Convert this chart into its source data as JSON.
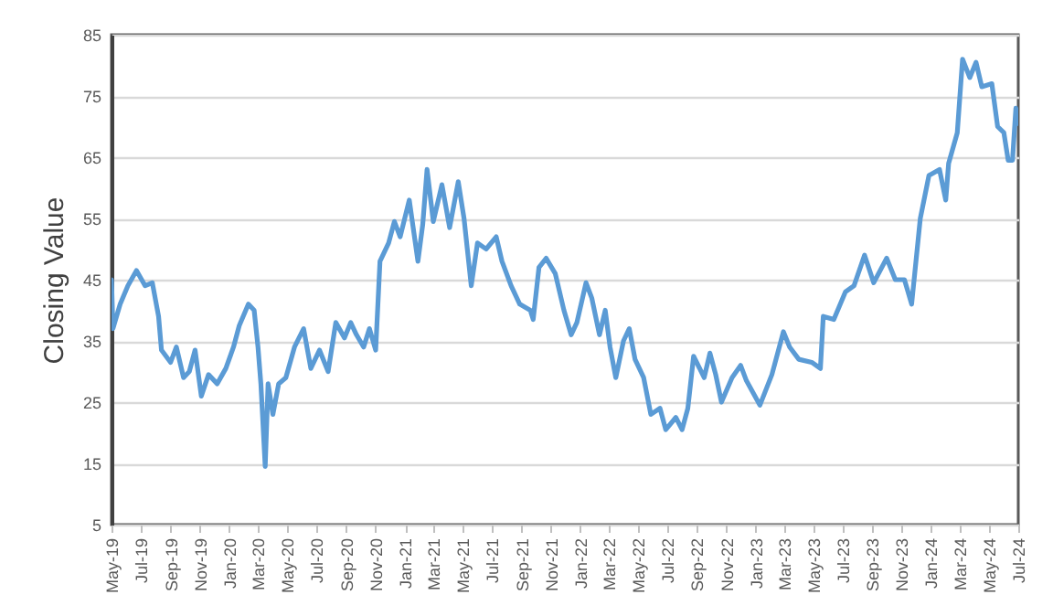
{
  "chart_data": {
    "type": "line",
    "ylabel": "Closing Value",
    "x": [
      "2019-05-01",
      "2019-05-04",
      "2019-05-19",
      "2019-06-04",
      "2019-06-22",
      "2019-07-10",
      "2019-07-25",
      "2019-08-07",
      "2019-08-13",
      "2019-09-01",
      "2019-09-13",
      "2019-09-28",
      "2019-10-10",
      "2019-10-22",
      "2019-11-04",
      "2019-11-19",
      "2019-12-07",
      "2019-12-25",
      "2020-01-10",
      "2020-01-22",
      "2020-02-10",
      "2020-02-22",
      "2020-03-01",
      "2020-03-07",
      "2020-03-16",
      "2020-03-22",
      "2020-04-01",
      "2020-04-13",
      "2020-04-28",
      "2020-05-16",
      "2020-06-04",
      "2020-06-19",
      "2020-07-07",
      "2020-07-25",
      "2020-08-10",
      "2020-08-28",
      "2020-09-10",
      "2020-09-22",
      "2020-10-07",
      "2020-10-19",
      "2020-11-01",
      "2020-11-10",
      "2020-11-28",
      "2020-12-10",
      "2020-12-22",
      "2021-01-10",
      "2021-01-28",
      "2021-02-07",
      "2021-02-16",
      "2021-03-01",
      "2021-03-19",
      "2021-04-04",
      "2021-04-22",
      "2021-05-04",
      "2021-05-19",
      "2021-06-01",
      "2021-06-19",
      "2021-07-10",
      "2021-07-22",
      "2021-08-10",
      "2021-08-28",
      "2021-09-19",
      "2021-09-25",
      "2021-10-07",
      "2021-10-22",
      "2021-11-10",
      "2021-11-28",
      "2021-12-13",
      "2021-12-25",
      "2022-01-13",
      "2022-01-25",
      "2022-02-10",
      "2022-02-22",
      "2022-03-04",
      "2022-03-16",
      "2022-04-01",
      "2022-04-13",
      "2022-04-25",
      "2022-05-13",
      "2022-05-28",
      "2022-06-16",
      "2022-06-28",
      "2022-07-19",
      "2022-08-01",
      "2022-08-13",
      "2022-08-25",
      "2022-09-16",
      "2022-09-28",
      "2022-10-10",
      "2022-10-22",
      "2022-11-13",
      "2022-12-01",
      "2022-12-13",
      "2023-01-10",
      "2023-02-04",
      "2023-02-28",
      "2023-03-13",
      "2023-04-01",
      "2023-04-28",
      "2023-05-16",
      "2023-05-22",
      "2023-06-13",
      "2023-07-07",
      "2023-07-25",
      "2023-08-16",
      "2023-09-04",
      "2023-10-01",
      "2023-10-19",
      "2023-11-07",
      "2023-11-22",
      "2023-12-10",
      "2023-12-28",
      "2024-01-19",
      "2024-02-01",
      "2024-02-07",
      "2024-02-25",
      "2024-03-07",
      "2024-03-22",
      "2024-04-04",
      "2024-04-16",
      "2024-05-07",
      "2024-05-19",
      "2024-06-01",
      "2024-06-10",
      "2024-06-19",
      "2024-06-26",
      "2024-07-01"
    ],
    "series": [
      {
        "color": "#5b9bd5",
        "values": [
          45,
          37,
          41,
          44,
          46.5,
          44,
          44.5,
          39,
          33.5,
          31.5,
          34,
          29,
          30,
          33.5,
          26,
          29.5,
          28,
          30.5,
          34,
          37.5,
          41,
          40,
          34,
          28,
          14.5,
          28,
          23,
          28,
          29,
          34,
          37,
          30.5,
          33.5,
          30,
          38,
          35.5,
          38,
          36,
          34,
          37,
          33.5,
          48,
          51,
          54.5,
          52,
          58,
          48,
          54,
          63,
          54.5,
          60.5,
          53.5,
          61,
          55,
          44,
          51,
          50,
          52,
          48,
          44,
          41,
          40,
          38.5,
          47,
          48.5,
          46,
          40,
          36,
          38,
          44.5,
          42,
          36,
          40,
          34,
          29,
          35,
          37,
          32,
          29,
          23,
          24,
          20.5,
          22.5,
          20.5,
          24,
          32.5,
          29,
          33,
          29.5,
          25,
          29,
          31,
          28.5,
          24.5,
          29.5,
          36.5,
          34,
          32,
          31.5,
          30.5,
          39,
          38.5,
          43,
          44,
          49,
          44.5,
          48.5,
          45,
          45,
          41,
          55,
          62,
          63,
          58,
          64,
          69,
          81,
          78,
          80.5,
          76.5,
          77,
          70,
          69,
          64.5,
          64.5,
          73,
          70.5
        ]
      }
    ],
    "xlim": [
      "2019-05",
      "2024-07"
    ],
    "xticks": [
      {
        "value": "2019-05",
        "label": "May-19"
      },
      {
        "value": "2019-07",
        "label": "Jul-19"
      },
      {
        "value": "2019-09",
        "label": "Sep-19"
      },
      {
        "value": "2019-11",
        "label": "Nov-19"
      },
      {
        "value": "2020-01",
        "label": "Jan-20"
      },
      {
        "value": "2020-03",
        "label": "Mar-20"
      },
      {
        "value": "2020-05",
        "label": "May-20"
      },
      {
        "value": "2020-07",
        "label": "Jul-20"
      },
      {
        "value": "2020-09",
        "label": "Sep-20"
      },
      {
        "value": "2020-11",
        "label": "Nov-20"
      },
      {
        "value": "2021-01",
        "label": "Jan-21"
      },
      {
        "value": "2021-03",
        "label": "Mar-21"
      },
      {
        "value": "2021-05",
        "label": "May-21"
      },
      {
        "value": "2021-07",
        "label": "Jul-21"
      },
      {
        "value": "2021-09",
        "label": "Sep-21"
      },
      {
        "value": "2021-11",
        "label": "Nov-21"
      },
      {
        "value": "2022-01",
        "label": "Jan-22"
      },
      {
        "value": "2022-03",
        "label": "Mar-22"
      },
      {
        "value": "2022-05",
        "label": "May-22"
      },
      {
        "value": "2022-07",
        "label": "Jul-22"
      },
      {
        "value": "2022-09",
        "label": "Sep-22"
      },
      {
        "value": "2022-11",
        "label": "Nov-22"
      },
      {
        "value": "2023-01",
        "label": "Jan-23"
      },
      {
        "value": "2023-03",
        "label": "Mar-23"
      },
      {
        "value": "2023-05",
        "label": "May-23"
      },
      {
        "value": "2023-07",
        "label": "Jul-23"
      },
      {
        "value": "2023-09",
        "label": "Sep-23"
      },
      {
        "value": "2023-11",
        "label": "Nov-23"
      },
      {
        "value": "2024-01",
        "label": "Jan-24"
      },
      {
        "value": "2024-03",
        "label": "Mar-24"
      },
      {
        "value": "2024-05",
        "label": "May-24"
      },
      {
        "value": "2024-07",
        "label": "Jul-24"
      }
    ],
    "ylim": [
      5,
      85
    ],
    "yticks": [
      5,
      15,
      25,
      35,
      45,
      55,
      65,
      75,
      85
    ],
    "grid": "y",
    "marker": "none",
    "line_style": "solid"
  }
}
